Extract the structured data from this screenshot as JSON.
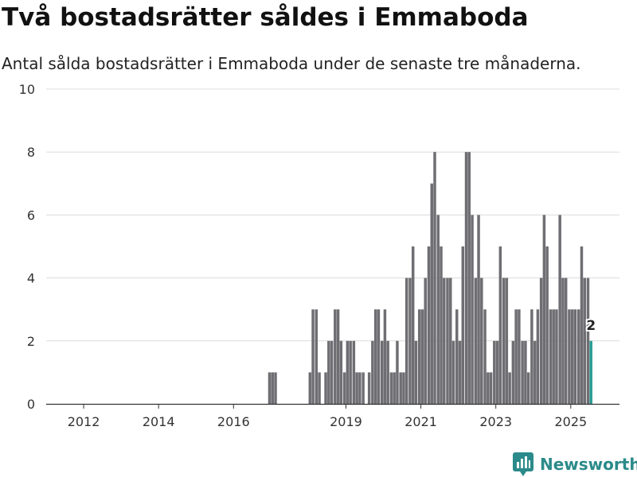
{
  "title": "Två bostadsrätter såldes i Emmaboda",
  "subtitle": "Antal sålda bostadsrätter i Emmaboda under de senaste tre månaderna.",
  "brand": {
    "name": "Newsworthy",
    "color": "#2b8a8a",
    "icon": "bar-chart-logo-icon"
  },
  "colors": {
    "bar": "#6e6e73",
    "highlight": "#2a9d95",
    "grid": "#dcdcdc",
    "axis": "#333333"
  },
  "chart_data": {
    "type": "bar",
    "xlabel": "",
    "ylabel": "",
    "ylim": [
      0,
      10
    ],
    "yticks": [
      0,
      2,
      4,
      6,
      8,
      10
    ],
    "xlim": [
      2011.0,
      2026.3
    ],
    "xticks": [
      2012,
      2014,
      2016,
      2019,
      2021,
      2023,
      2025
    ],
    "grid": true,
    "bar_width": 0.074,
    "series": [
      {
        "values": [
          {
            "x": 2016.96,
            "y": 1
          },
          {
            "x": 2017.04,
            "y": 1
          },
          {
            "x": 2017.12,
            "y": 1
          },
          {
            "x": 2018.04,
            "y": 1
          },
          {
            "x": 2018.12,
            "y": 3
          },
          {
            "x": 2018.21,
            "y": 3
          },
          {
            "x": 2018.29,
            "y": 1
          },
          {
            "x": 2018.46,
            "y": 1
          },
          {
            "x": 2018.54,
            "y": 2
          },
          {
            "x": 2018.62,
            "y": 2
          },
          {
            "x": 2018.71,
            "y": 3
          },
          {
            "x": 2018.79,
            "y": 3
          },
          {
            "x": 2018.87,
            "y": 2
          },
          {
            "x": 2018.96,
            "y": 1
          },
          {
            "x": 2019.04,
            "y": 2
          },
          {
            "x": 2019.12,
            "y": 2
          },
          {
            "x": 2019.21,
            "y": 2
          },
          {
            "x": 2019.29,
            "y": 1
          },
          {
            "x": 2019.37,
            "y": 1
          },
          {
            "x": 2019.46,
            "y": 1
          },
          {
            "x": 2019.62,
            "y": 1
          },
          {
            "x": 2019.71,
            "y": 2
          },
          {
            "x": 2019.79,
            "y": 3
          },
          {
            "x": 2019.87,
            "y": 3
          },
          {
            "x": 2019.96,
            "y": 2
          },
          {
            "x": 2020.04,
            "y": 3
          },
          {
            "x": 2020.12,
            "y": 2
          },
          {
            "x": 2020.21,
            "y": 1
          },
          {
            "x": 2020.29,
            "y": 1
          },
          {
            "x": 2020.37,
            "y": 2
          },
          {
            "x": 2020.46,
            "y": 1
          },
          {
            "x": 2020.54,
            "y": 1
          },
          {
            "x": 2020.62,
            "y": 4
          },
          {
            "x": 2020.71,
            "y": 4
          },
          {
            "x": 2020.79,
            "y": 5
          },
          {
            "x": 2020.87,
            "y": 2
          },
          {
            "x": 2020.96,
            "y": 3
          },
          {
            "x": 2021.04,
            "y": 3
          },
          {
            "x": 2021.12,
            "y": 4
          },
          {
            "x": 2021.21,
            "y": 5
          },
          {
            "x": 2021.29,
            "y": 7
          },
          {
            "x": 2021.37,
            "y": 8
          },
          {
            "x": 2021.46,
            "y": 6
          },
          {
            "x": 2021.54,
            "y": 5
          },
          {
            "x": 2021.62,
            "y": 4
          },
          {
            "x": 2021.71,
            "y": 4
          },
          {
            "x": 2021.79,
            "y": 4
          },
          {
            "x": 2021.87,
            "y": 2
          },
          {
            "x": 2021.96,
            "y": 3
          },
          {
            "x": 2022.04,
            "y": 2
          },
          {
            "x": 2022.12,
            "y": 5
          },
          {
            "x": 2022.21,
            "y": 8
          },
          {
            "x": 2022.29,
            "y": 8
          },
          {
            "x": 2022.37,
            "y": 6
          },
          {
            "x": 2022.46,
            "y": 4
          },
          {
            "x": 2022.54,
            "y": 6
          },
          {
            "x": 2022.62,
            "y": 4
          },
          {
            "x": 2022.71,
            "y": 3
          },
          {
            "x": 2022.79,
            "y": 1
          },
          {
            "x": 2022.87,
            "y": 1
          },
          {
            "x": 2022.96,
            "y": 2
          },
          {
            "x": 2023.04,
            "y": 2
          },
          {
            "x": 2023.12,
            "y": 5
          },
          {
            "x": 2023.21,
            "y": 4
          },
          {
            "x": 2023.29,
            "y": 4
          },
          {
            "x": 2023.37,
            "y": 1
          },
          {
            "x": 2023.46,
            "y": 2
          },
          {
            "x": 2023.54,
            "y": 3
          },
          {
            "x": 2023.62,
            "y": 3
          },
          {
            "x": 2023.71,
            "y": 2
          },
          {
            "x": 2023.79,
            "y": 2
          },
          {
            "x": 2023.87,
            "y": 1
          },
          {
            "x": 2023.96,
            "y": 3
          },
          {
            "x": 2024.04,
            "y": 2
          },
          {
            "x": 2024.12,
            "y": 3
          },
          {
            "x": 2024.21,
            "y": 4
          },
          {
            "x": 2024.29,
            "y": 6
          },
          {
            "x": 2024.37,
            "y": 5
          },
          {
            "x": 2024.46,
            "y": 3
          },
          {
            "x": 2024.54,
            "y": 3
          },
          {
            "x": 2024.62,
            "y": 3
          },
          {
            "x": 2024.71,
            "y": 6
          },
          {
            "x": 2024.79,
            "y": 4
          },
          {
            "x": 2024.87,
            "y": 4
          },
          {
            "x": 2024.96,
            "y": 3
          },
          {
            "x": 2025.04,
            "y": 3
          },
          {
            "x": 2025.12,
            "y": 3
          },
          {
            "x": 2025.21,
            "y": 3
          },
          {
            "x": 2025.29,
            "y": 5
          },
          {
            "x": 2025.37,
            "y": 4
          },
          {
            "x": 2025.46,
            "y": 4
          },
          {
            "x": 2025.54,
            "y": 2,
            "highlight": true
          }
        ]
      }
    ],
    "annotations": [
      {
        "x": 2025.54,
        "y": 2,
        "text": "2"
      }
    ]
  }
}
